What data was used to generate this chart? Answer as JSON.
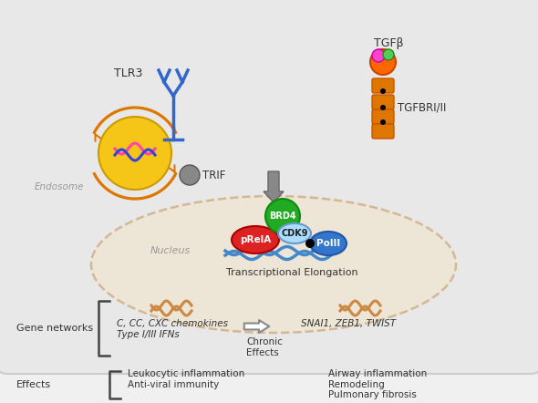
{
  "fig_w": 5.9,
  "fig_h": 4.42,
  "dpi": 100,
  "bg_color": "#f0f0f0",
  "cell_facecolor": "#e8e8e8",
  "cell_edgecolor": "#cccccc",
  "nucleus_facecolor": "#ede5d5",
  "nucleus_edgecolor": "#d4b896",
  "endosome_color": "#f5c518",
  "endosome_edge": "#cc9900",
  "tlr3_color": "#3366cc",
  "orange_color": "#dd7700",
  "trif_color": "#888888",
  "brd4_color": "#22aa22",
  "brd4_edge": "#118811",
  "cdk9_color": "#aaddff",
  "cdk9_edge": "#6699cc",
  "prela_color": "#dd2222",
  "prela_edge": "#aa0000",
  "polii_color": "#3377cc",
  "polii_edge": "#2255aa",
  "dna_color": "#4488cc",
  "wave_color": "#cc8844",
  "gray_arrow": "#888888",
  "text_dark": "#333333",
  "text_gray": "#999999",
  "bracket_color": "#444444",
  "tlr3_label": "TLR3",
  "trif_label": "TRIF",
  "tgfb_label": "TGFβ",
  "tgfbrii_label": "TGFBRI/II",
  "endosome_label": "Endosome",
  "nucleus_label": "Nucleus",
  "brd4_label": "BRD4",
  "cdk9_label": "CDK9",
  "prela_label": "pRelA",
  "polii_label": "PolII",
  "transcription_label": "Transcriptional Elongation",
  "gene_networks_label": "Gene networks",
  "chemokines_label": "C, CC, CXC chemokines\nType I/III IFNs",
  "chronic_label": "Chronic\nEffects",
  "snai_label": "SNAI1, ZEB1, TWIST",
  "effects_label": "Effects",
  "leukocytic_label": "Leukocytic inflammation\nAnti-viral immunity",
  "airway_label": "Airway inflammation\nRemodeling\nPulmonary fibrosis"
}
